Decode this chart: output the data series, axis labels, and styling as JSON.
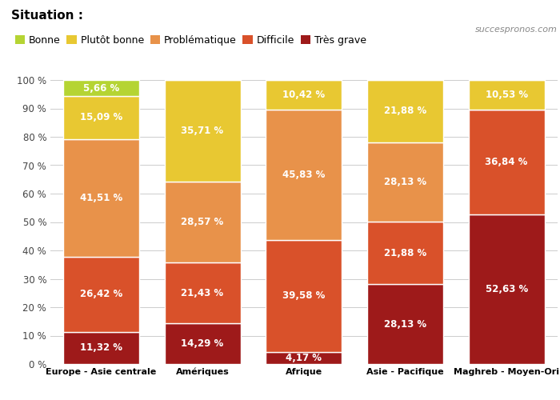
{
  "categories": [
    "Europe - Asie centrale",
    "Amériques",
    "Afrique",
    "Asie - Pacifique",
    "Maghreb - Moyen-Ori"
  ],
  "situation_labels": [
    "Très grave",
    "Difficile",
    "Problématique",
    "Plutôt bonne",
    "Bonne"
  ],
  "colors": [
    "#9e1a1a",
    "#d9512a",
    "#e8924a",
    "#e8c832",
    "#b5d433"
  ],
  "values": [
    [
      11.32,
      26.42,
      41.51,
      15.09,
      5.66
    ],
    [
      14.29,
      21.43,
      28.57,
      35.71,
      0.0
    ],
    [
      4.17,
      39.58,
      45.83,
      10.42,
      0.0
    ],
    [
      28.13,
      21.88,
      28.13,
      21.88,
      0.0
    ],
    [
      52.63,
      36.84,
      0.0,
      10.53,
      0.0
    ]
  ],
  "legend_labels": [
    "Bonne",
    "Plutôt bonne",
    "Problématique",
    "Difficile",
    "Très grave"
  ],
  "legend_colors": [
    "#b5d433",
    "#e8c832",
    "#e8924a",
    "#d9512a",
    "#9e1a1a"
  ],
  "title": "Situation :",
  "watermark": "succespronos.com",
  "bar_width": 0.75,
  "ylim": [
    0,
    100
  ],
  "yticks": [
    0,
    10,
    20,
    30,
    40,
    50,
    60,
    70,
    80,
    90,
    100
  ],
  "ytick_labels": [
    "0 %",
    "10 %",
    "20 %",
    "30 %",
    "40 %",
    "50 %",
    "60 %",
    "70 %",
    "80 %",
    "90 %",
    "100 %"
  ],
  "label_threshold": 4.0
}
